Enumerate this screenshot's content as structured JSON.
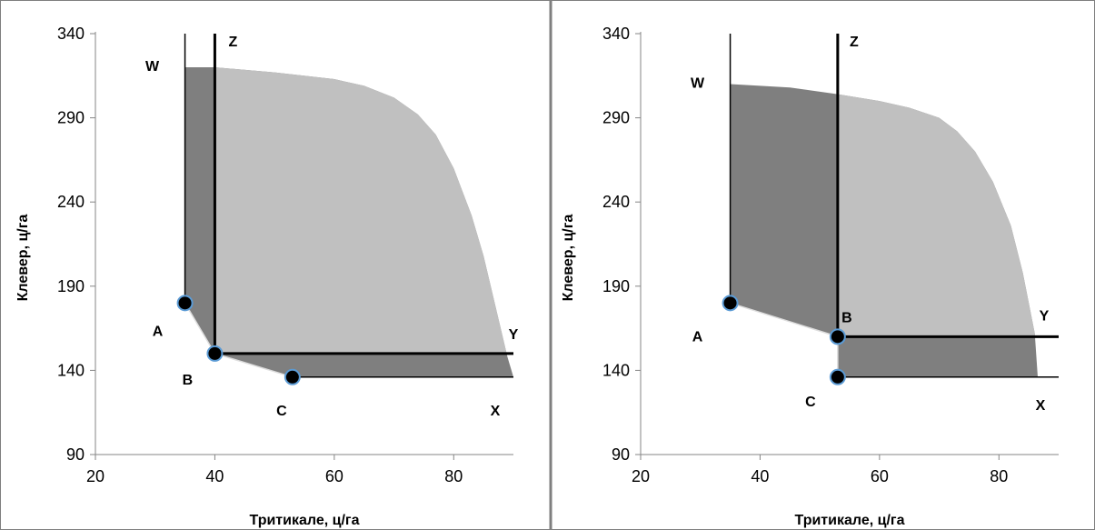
{
  "colors": {
    "light_region": "#c0c0c0",
    "dark_region": "#7f7f7f",
    "line": "#000000",
    "point_fill": "#000000",
    "point_stroke": "#5b9bd5",
    "frame": "#7f7f7f"
  },
  "chart_data": [
    {
      "type": "area",
      "xlabel": "Тритикале, ц/га",
      "ylabel": "Клевер, ц/га",
      "xlim": [
        20,
        90
      ],
      "ylim": [
        90,
        340
      ],
      "xticks": [
        "20",
        "40",
        "60",
        "80"
      ],
      "yticks": [
        "90",
        "140",
        "190",
        "240",
        "290",
        "340"
      ],
      "grid": false,
      "outer_frontier": [
        [
          35,
          320
        ],
        [
          40,
          320
        ],
        [
          50,
          317
        ],
        [
          60,
          313
        ],
        [
          65,
          309
        ],
        [
          70,
          302
        ],
        [
          74,
          292
        ],
        [
          77,
          280
        ],
        [
          80,
          260
        ],
        [
          83,
          232
        ],
        [
          85,
          208
        ],
        [
          87,
          178
        ],
        [
          89,
          148
        ],
        [
          90,
          136
        ]
      ],
      "points": [
        {
          "label": "A",
          "x": 35,
          "y": 180
        },
        {
          "label": "B",
          "x": 40,
          "y": 150
        },
        {
          "label": "C",
          "x": 53,
          "y": 136
        }
      ],
      "lines": [
        {
          "label": "W",
          "kind": "vertical",
          "x": 35,
          "y_range": [
            180,
            340
          ]
        },
        {
          "label": "Z",
          "kind": "vertical",
          "x": 40,
          "y_range": [
            150,
            340
          ]
        },
        {
          "label": "Y",
          "kind": "horizontal",
          "y": 150,
          "x_range": [
            40,
            90
          ]
        },
        {
          "label": "X",
          "kind": "horizontal",
          "y": 136,
          "x_range": [
            53,
            90
          ]
        }
      ]
    },
    {
      "type": "area",
      "xlabel": "Тритикале, ц/га",
      "ylabel": "Клевер, ц/га",
      "xlim": [
        20,
        90
      ],
      "ylim": [
        90,
        340
      ],
      "xticks": [
        "20",
        "40",
        "60",
        "80"
      ],
      "yticks": [
        "90",
        "140",
        "190",
        "240",
        "290",
        "340"
      ],
      "grid": false,
      "outer_frontier": [
        [
          35,
          310
        ],
        [
          45,
          308
        ],
        [
          53,
          304
        ],
        [
          60,
          300
        ],
        [
          65,
          296
        ],
        [
          70,
          290
        ],
        [
          73,
          282
        ],
        [
          76,
          270
        ],
        [
          79,
          252
        ],
        [
          82,
          226
        ],
        [
          84,
          198
        ],
        [
          86,
          162
        ],
        [
          86.5,
          136
        ]
      ],
      "points": [
        {
          "label": "A",
          "x": 35,
          "y": 180
        },
        {
          "label": "B",
          "x": 53,
          "y": 160
        },
        {
          "label": "C",
          "x": 53,
          "y": 136
        }
      ],
      "lines": [
        {
          "label": "W",
          "kind": "vertical",
          "x": 35,
          "y_range": [
            180,
            340
          ]
        },
        {
          "label": "Z",
          "kind": "vertical",
          "x": 53,
          "y_range": [
            160,
            340
          ]
        },
        {
          "label": "Y",
          "kind": "horizontal",
          "y": 160,
          "x_range": [
            53,
            90
          ]
        },
        {
          "label": "X",
          "kind": "horizontal",
          "y": 136,
          "x_range": [
            53,
            90
          ]
        }
      ]
    }
  ]
}
